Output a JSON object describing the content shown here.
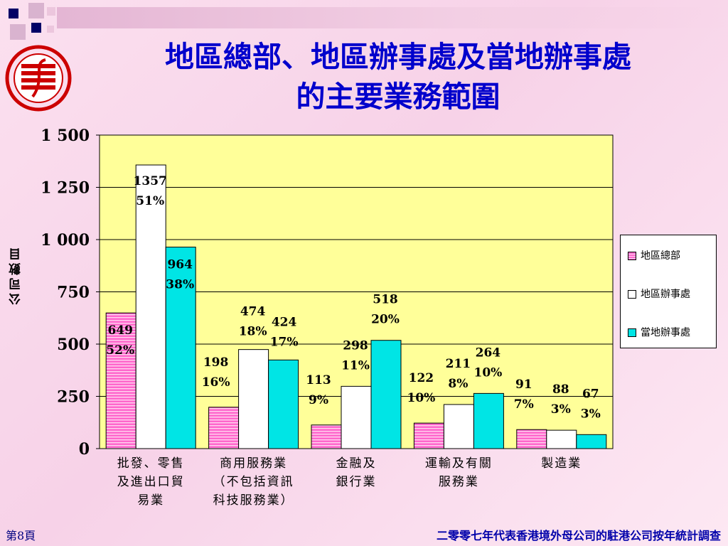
{
  "title_line1": "地區總部、地區辦事處及當地辦事處",
  "title_line2": "的主要業務範圍",
  "footer": {
    "page": "第8頁",
    "source": "二零零七年代表香港境外母公司的駐港公司按年統計調查"
  },
  "legend_swatch_colors": {
    "地區總部": "#ff66cc",
    "地區辦事處": "#ffffff",
    "當地辦事處": "#00e5e5"
  },
  "chart_data": {
    "type": "bar",
    "title": "",
    "ylabel": "公司數目",
    "xlabel": "",
    "ylim": [
      0,
      1500
    ],
    "yticks": [
      0,
      250,
      500,
      750,
      1000,
      1250,
      1500
    ],
    "ytick_labels": [
      "0",
      "250",
      "500",
      "750",
      "1 000",
      "1 250",
      "1 500"
    ],
    "grid": true,
    "legend_position": "right",
    "plot_background": "#ffff99",
    "categories": [
      [
        "批發、零售",
        "及進出口貿",
        "易業"
      ],
      [
        "商用服務業",
        "（不包括資訊",
        "科技服務業）"
      ],
      [
        "金融及",
        "銀行業"
      ],
      [
        "運輸及有關",
        "服務業"
      ],
      [
        "製造業"
      ]
    ],
    "series": [
      {
        "name": "地區總部",
        "color": "#ff66cc",
        "pattern": "hstripe",
        "values": [
          649,
          198,
          113,
          122,
          91
        ],
        "percents": [
          "52%",
          "16%",
          "9%",
          "10%",
          "7%"
        ]
      },
      {
        "name": "地區辦事處",
        "color": "#ffffff",
        "pattern": "solid",
        "values": [
          1357,
          474,
          298,
          211,
          88
        ],
        "percents": [
          "51%",
          "18%",
          "11%",
          "8%",
          "3%"
        ]
      },
      {
        "name": "當地辦事處",
        "color": "#00e5e5",
        "pattern": "solid",
        "values": [
          964,
          424,
          518,
          264,
          67
        ],
        "percents": [
          "38%",
          "17%",
          "20%",
          "10%",
          "3%"
        ]
      }
    ]
  }
}
